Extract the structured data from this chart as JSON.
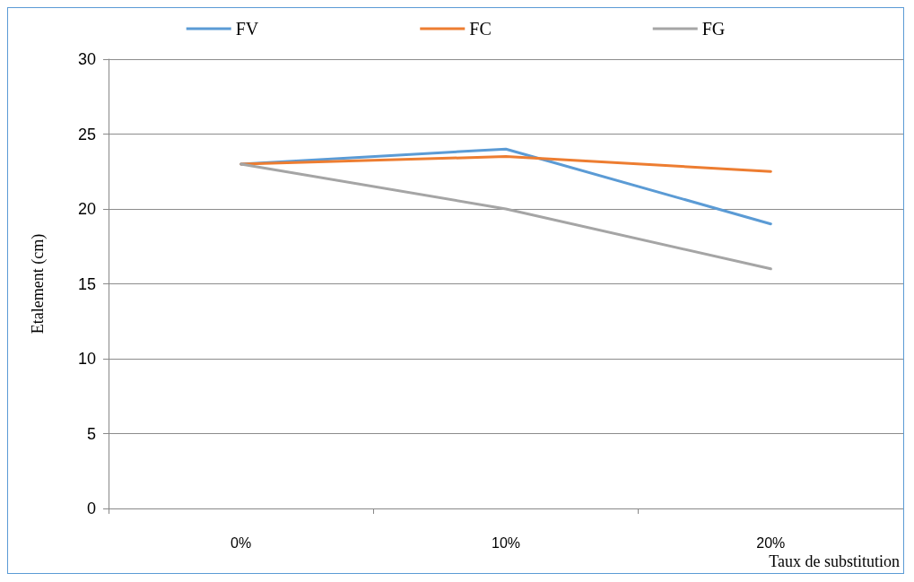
{
  "chart_data": {
    "type": "line",
    "xlabel": "Taux de substitution",
    "ylabel": "Etalement (cm)",
    "categories": [
      "0%",
      "10%",
      "20%"
    ],
    "series": [
      {
        "name": "FV",
        "color": "#5b9bd5",
        "values": [
          23,
          24,
          19
        ]
      },
      {
        "name": "FC",
        "color": "#ed7d31",
        "values": [
          23,
          23.5,
          22.5
        ]
      },
      {
        "name": "FG",
        "color": "#a5a5a5",
        "values": [
          23,
          20,
          16
        ]
      }
    ],
    "ylim": [
      0,
      30
    ],
    "yticks": [
      0,
      5,
      10,
      15,
      20,
      25,
      30
    ],
    "grid": "y",
    "legend": "top",
    "marker": "none",
    "line_style": "solid"
  }
}
